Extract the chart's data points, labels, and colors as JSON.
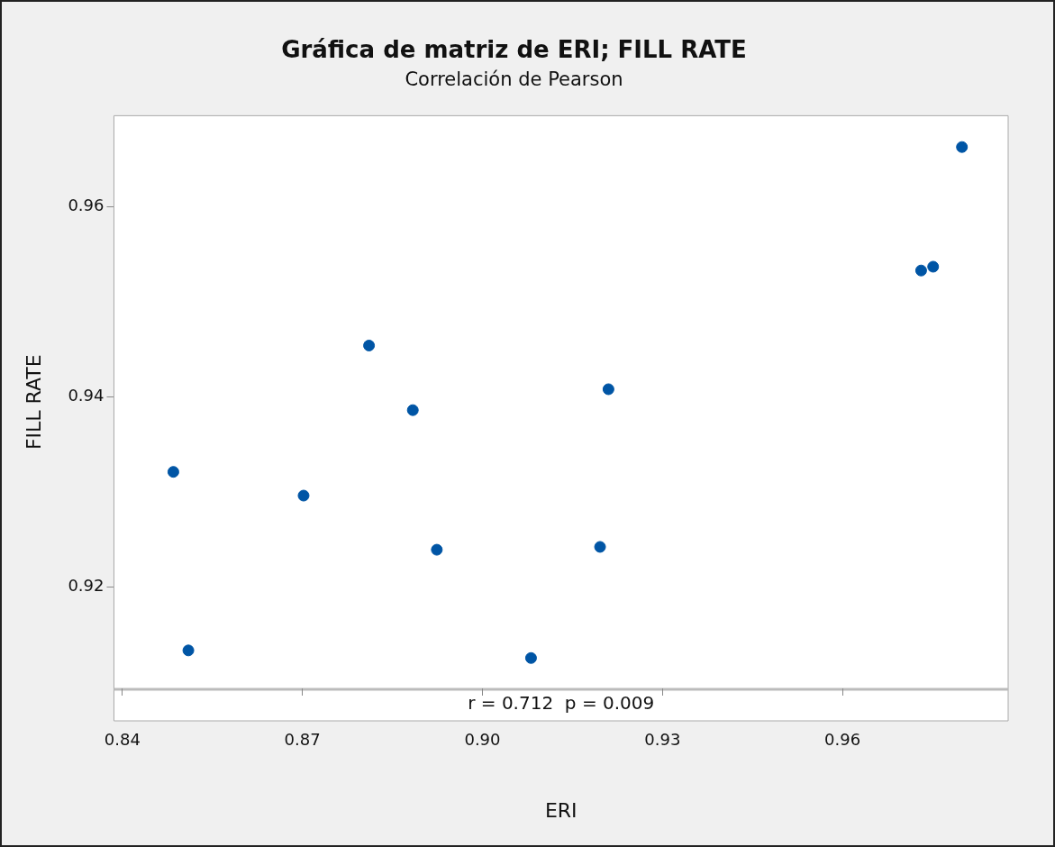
{
  "chart_data": {
    "type": "scatter",
    "title": "Gráfica de matriz de ERI; FILL RATE",
    "subtitle": "Correlación de Pearson",
    "xlabel": "ERI",
    "ylabel": "FILL RATE",
    "annotations": [
      "r = 0.712  p = 0.009"
    ],
    "x": [
      0.8485,
      0.851,
      0.8702,
      0.8811,
      0.8884,
      0.8924,
      0.9081,
      0.9196,
      0.921,
      0.9731,
      0.9751,
      0.9799
    ],
    "series": [
      {
        "color": "#0055a5",
        "values": [
          0.9321,
          0.9133,
          0.9296,
          0.9454,
          0.9386,
          0.9239,
          0.9125,
          0.9242,
          0.9408,
          0.9533,
          0.9537,
          0.9663
        ]
      }
    ],
    "xlim": [
      0.8386,
      0.9876
    ],
    "ylim": [
      0.9093,
      0.9696
    ],
    "xticks": [
      {
        "value": 0.84,
        "label": "0.84"
      },
      {
        "value": 0.87,
        "label": "0.87"
      },
      {
        "value": 0.9,
        "label": "0.90"
      },
      {
        "value": 0.93,
        "label": "0.93"
      },
      {
        "value": 0.96,
        "label": "0.96"
      }
    ],
    "yticks": [
      {
        "value": 0.92,
        "label": "0.92"
      },
      {
        "value": 0.94,
        "label": "0.94"
      },
      {
        "value": 0.96,
        "label": "0.96"
      }
    ],
    "grid": false,
    "legend": false,
    "marker": "circle"
  }
}
